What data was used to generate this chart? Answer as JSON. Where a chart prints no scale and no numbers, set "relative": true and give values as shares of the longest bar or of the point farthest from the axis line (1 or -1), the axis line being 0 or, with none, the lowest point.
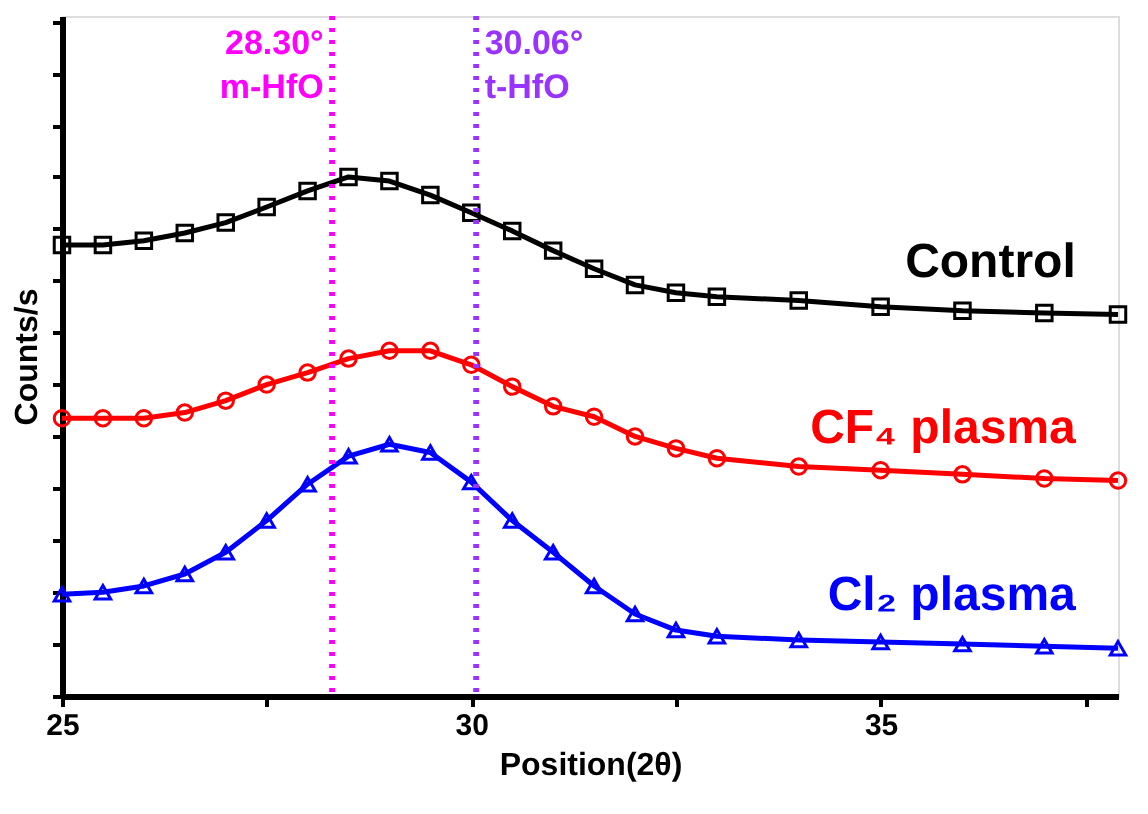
{
  "chart_data": {
    "type": "line",
    "xlabel": "Position(2θ)",
    "ylabel": "Counts/s",
    "relative": true,
    "legend": false,
    "grid": false,
    "xlim": [
      25,
      37.9
    ],
    "xticks": [
      25,
      {
        "value": 27.5,
        "label": null
      },
      30,
      {
        "value": 32.5,
        "label": null
      },
      35,
      {
        "value": 37.5,
        "label": null
      }
    ],
    "x": [
      25,
      25.5,
      26,
      26.5,
      27,
      27.5,
      28,
      28.5,
      29,
      29.5,
      30,
      30.5,
      31,
      31.5,
      32,
      32.5,
      33,
      34,
      35,
      36,
      37,
      37.9
    ],
    "series": [
      {
        "name": "Control",
        "color": "#000000",
        "marker": "square",
        "values": [
          0.869,
          0.869,
          0.877,
          0.892,
          0.912,
          0.942,
          0.973,
          1.0,
          0.992,
          0.965,
          0.931,
          0.896,
          0.858,
          0.823,
          0.792,
          0.777,
          0.769,
          0.762,
          0.75,
          0.742,
          0.738,
          0.735
        ]
      },
      {
        "name": "CF₄ plasma",
        "color": "#ff0000",
        "marker": "circle",
        "values": [
          0.535,
          0.535,
          0.535,
          0.546,
          0.569,
          0.6,
          0.623,
          0.65,
          0.665,
          0.665,
          0.638,
          0.596,
          0.558,
          0.538,
          0.5,
          0.477,
          0.458,
          0.442,
          0.435,
          0.427,
          0.419,
          0.415
        ]
      },
      {
        "name": "Cl₂ plasma",
        "color": "#0000ff",
        "marker": "triangle",
        "values": [
          0.196,
          0.2,
          0.212,
          0.235,
          0.277,
          0.338,
          0.408,
          0.462,
          0.485,
          0.469,
          0.412,
          0.338,
          0.277,
          0.212,
          0.158,
          0.127,
          0.115,
          0.108,
          0.104,
          0.1,
          0.096,
          0.092
        ]
      }
    ],
    "ref_lines": [
      {
        "axis": "x",
        "value": 28.3,
        "label": "28.30°\nm-HfO",
        "color": "#ff00ff",
        "line_style": "dotted"
      },
      {
        "axis": "x",
        "value": 30.06,
        "label": "30.06°\nt-HfO",
        "color": "#9933ff",
        "line_style": "dotted"
      }
    ]
  }
}
